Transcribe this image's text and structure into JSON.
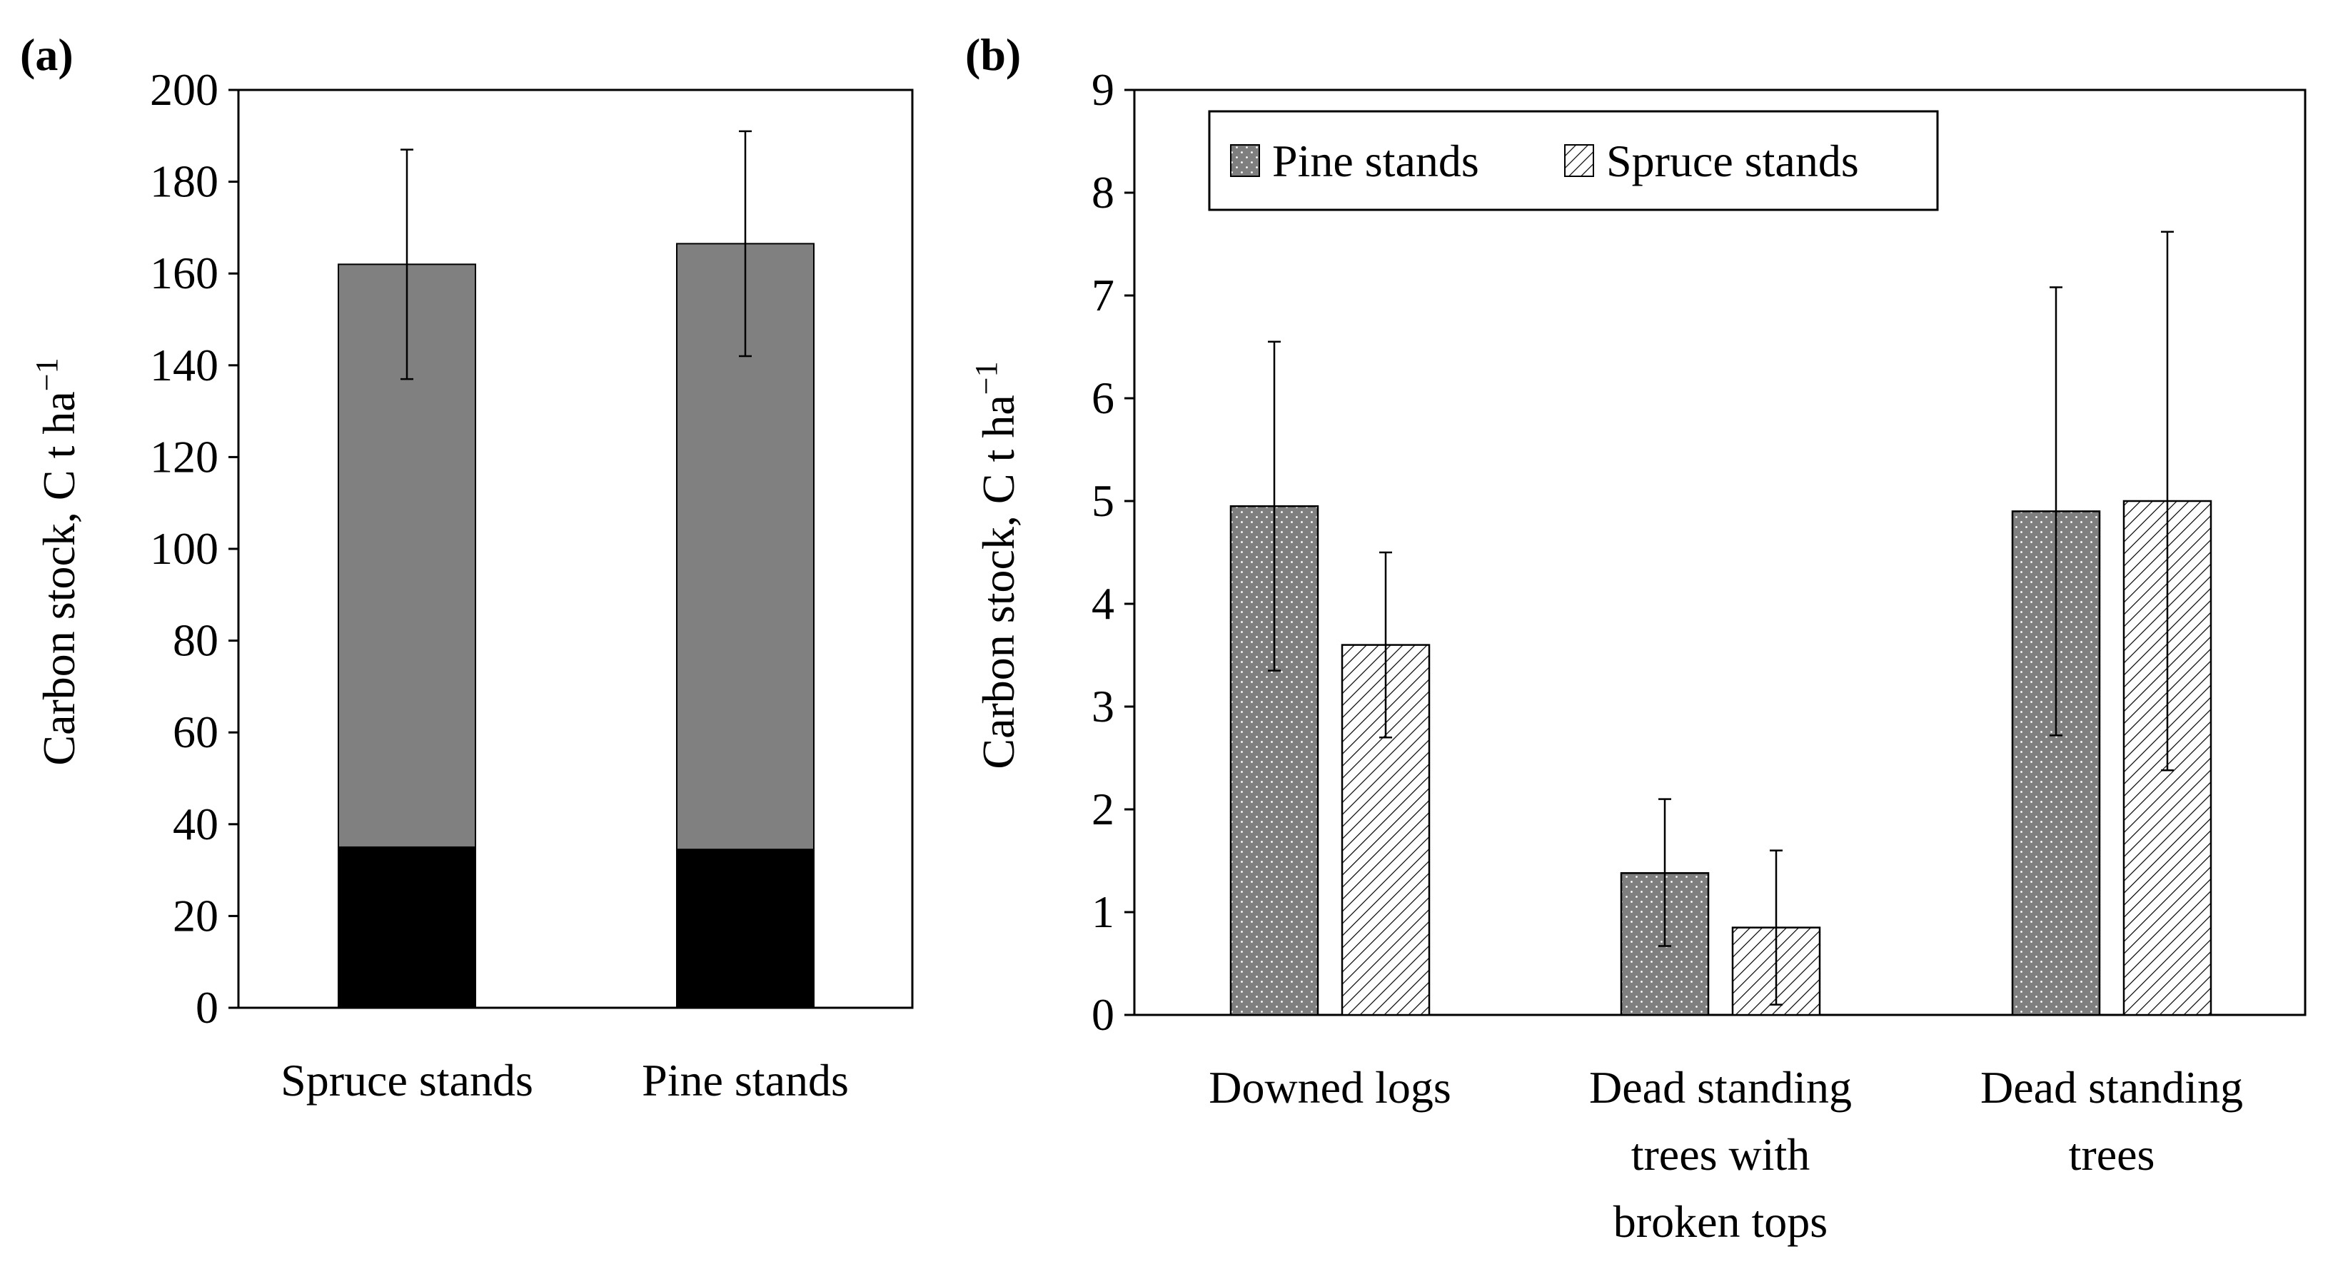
{
  "colors": {
    "background": "#ffffff",
    "axis": "#000000",
    "gray_fill": "#808080",
    "black_fill": "#000000",
    "dot_fill": "#7f7f7f",
    "dot_color": "#ffffff",
    "hatch_bg": "#ffffff",
    "hatch_line": "#000000"
  },
  "chart_data": [
    {
      "panel": "(a)",
      "type": "bar",
      "stacked": true,
      "ylabel": "Carbon stock, C t ha",
      "ylabel_sup": "−1",
      "ylim": [
        0,
        200
      ],
      "yticks": [
        0,
        20,
        40,
        60,
        80,
        100,
        120,
        140,
        160,
        180,
        200
      ],
      "categories": [
        "Spruce stands",
        "Pine stands"
      ],
      "series": [
        {
          "name": "lower segment",
          "color": "#000000",
          "values": [
            35,
            34.5
          ]
        },
        {
          "name": "upper segment",
          "color": "#808080",
          "values": [
            127,
            132
          ]
        }
      ],
      "totals": [
        162,
        166.5
      ],
      "error_bars": [
        {
          "low": 137,
          "high": 187
        },
        {
          "low": 142,
          "high": 191
        }
      ],
      "legend": "none",
      "grid": false
    },
    {
      "panel": "(b)",
      "type": "bar",
      "stacked": false,
      "ylabel": "Carbon stock, C t ha",
      "ylabel_sup": "−1",
      "ylim": [
        0,
        9
      ],
      "yticks": [
        0,
        1,
        2,
        3,
        4,
        5,
        6,
        7,
        8,
        9
      ],
      "categories": [
        [
          "Downed logs"
        ],
        [
          "Dead standing",
          "trees with",
          "broken tops"
        ],
        [
          "Dead standing",
          "trees"
        ]
      ],
      "series": [
        {
          "name": "Pine stands",
          "pattern": "dots",
          "values": [
            4.95,
            1.38,
            4.9
          ],
          "error_low": [
            3.35,
            0.67,
            2.72
          ],
          "error_high": [
            6.55,
            2.1,
            7.08
          ]
        },
        {
          "name": "Spruce stands",
          "pattern": "hatch",
          "values": [
            3.6,
            0.85,
            5.0
          ],
          "error_low": [
            2.7,
            0.1,
            2.38
          ],
          "error_high": [
            4.5,
            1.6,
            7.62
          ]
        }
      ],
      "legend": "top-left",
      "grid": false
    }
  ]
}
